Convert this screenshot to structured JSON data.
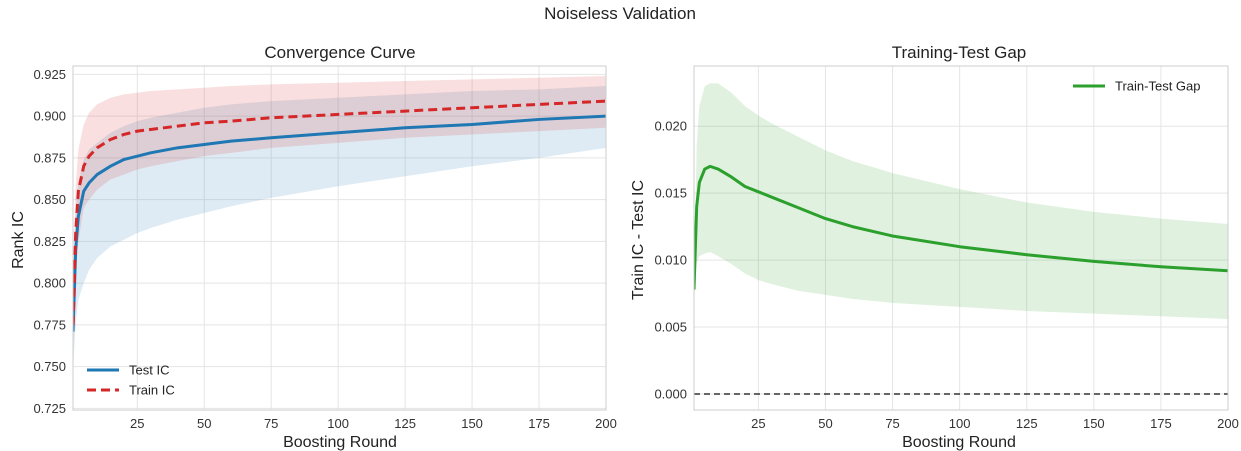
{
  "figure": {
    "title": "Noiseless Validation"
  },
  "chart_data": [
    {
      "type": "line",
      "title": "Convergence Curve",
      "xlabel": "Boosting Round",
      "ylabel": "Rank IC",
      "xlim": [
        1,
        200
      ],
      "ylim": [
        0.724,
        0.93
      ],
      "xticks": [
        25,
        50,
        75,
        100,
        125,
        150,
        175,
        200
      ],
      "yticks": [
        0.725,
        0.75,
        0.775,
        0.8,
        0.825,
        0.85,
        0.875,
        0.9,
        0.925
      ],
      "ytick_labels": [
        "0.725",
        "0.750",
        "0.775",
        "0.800",
        "0.825",
        "0.850",
        "0.875",
        "0.900",
        "0.925"
      ],
      "grid": true,
      "legend_position": "lower-left",
      "x": [
        1,
        2,
        3,
        5,
        7,
        10,
        15,
        20,
        25,
        30,
        40,
        50,
        60,
        75,
        100,
        125,
        150,
        175,
        200
      ],
      "series": [
        {
          "name": "Test IC",
          "color": "#1f77b4",
          "linestyle": "solid",
          "mean": [
            0.771,
            0.82,
            0.84,
            0.855,
            0.86,
            0.865,
            0.87,
            0.874,
            0.876,
            0.878,
            0.881,
            0.883,
            0.885,
            0.887,
            0.89,
            0.893,
            0.895,
            0.898,
            0.9
          ],
          "lower": [
            0.748,
            0.775,
            0.79,
            0.8,
            0.808,
            0.815,
            0.822,
            0.826,
            0.83,
            0.833,
            0.838,
            0.842,
            0.846,
            0.851,
            0.858,
            0.864,
            0.87,
            0.875,
            0.881
          ],
          "upper": [
            0.792,
            0.842,
            0.86,
            0.874,
            0.88,
            0.884,
            0.89,
            0.894,
            0.897,
            0.899,
            0.902,
            0.905,
            0.907,
            0.909,
            0.911,
            0.913,
            0.915,
            0.916,
            0.918
          ]
        },
        {
          "name": "Train IC",
          "color": "#d62728",
          "linestyle": "dashed",
          "mean": [
            0.775,
            0.83,
            0.855,
            0.87,
            0.876,
            0.881,
            0.886,
            0.889,
            0.891,
            0.892,
            0.894,
            0.896,
            0.897,
            0.899,
            0.901,
            0.903,
            0.905,
            0.907,
            0.909
          ],
          "lower": [
            0.758,
            0.805,
            0.825,
            0.845,
            0.85,
            0.856,
            0.862,
            0.865,
            0.868,
            0.87,
            0.873,
            0.876,
            0.878,
            0.881,
            0.884,
            0.887,
            0.889,
            0.891,
            0.893
          ],
          "upper": [
            0.795,
            0.858,
            0.88,
            0.895,
            0.902,
            0.907,
            0.911,
            0.913,
            0.914,
            0.915,
            0.916,
            0.917,
            0.918,
            0.919,
            0.92,
            0.921,
            0.922,
            0.923,
            0.924
          ]
        }
      ]
    },
    {
      "type": "line",
      "title": "Training-Test Gap",
      "xlabel": "Boosting Round",
      "ylabel": "Train IC - Test IC",
      "xlim": [
        1,
        200
      ],
      "ylim": [
        -0.0012,
        0.0245
      ],
      "xticks": [
        25,
        50,
        75,
        100,
        125,
        150,
        175,
        200
      ],
      "yticks": [
        0.0,
        0.005,
        0.01,
        0.015,
        0.02
      ],
      "ytick_labels": [
        "0.000",
        "0.005",
        "0.010",
        "0.015",
        "0.020"
      ],
      "grid": true,
      "legend_position": "top-right",
      "reference_line_y": 0.0,
      "x": [
        1,
        2,
        3,
        5,
        7,
        10,
        15,
        20,
        25,
        30,
        40,
        50,
        60,
        75,
        100,
        125,
        150,
        175,
        200
      ],
      "series": [
        {
          "name": "Train-Test Gap",
          "color": "#2ca02c",
          "linestyle": "solid",
          "mean": [
            0.0078,
            0.014,
            0.0158,
            0.0168,
            0.017,
            0.0168,
            0.0162,
            0.0155,
            0.0151,
            0.0147,
            0.0139,
            0.0131,
            0.0125,
            0.0118,
            0.011,
            0.0104,
            0.0099,
            0.0095,
            0.0092
          ],
          "lower": [
            0.0075,
            0.0098,
            0.0103,
            0.0105,
            0.0106,
            0.0103,
            0.0097,
            0.009,
            0.0085,
            0.0082,
            0.0077,
            0.0074,
            0.0071,
            0.0068,
            0.0065,
            0.0062,
            0.006,
            0.0058,
            0.0056
          ],
          "upper": [
            0.0082,
            0.0185,
            0.0215,
            0.023,
            0.0232,
            0.0232,
            0.0225,
            0.0215,
            0.0208,
            0.0202,
            0.0192,
            0.0182,
            0.0174,
            0.0165,
            0.0153,
            0.0143,
            0.0136,
            0.0131,
            0.0127
          ]
        }
      ]
    }
  ]
}
